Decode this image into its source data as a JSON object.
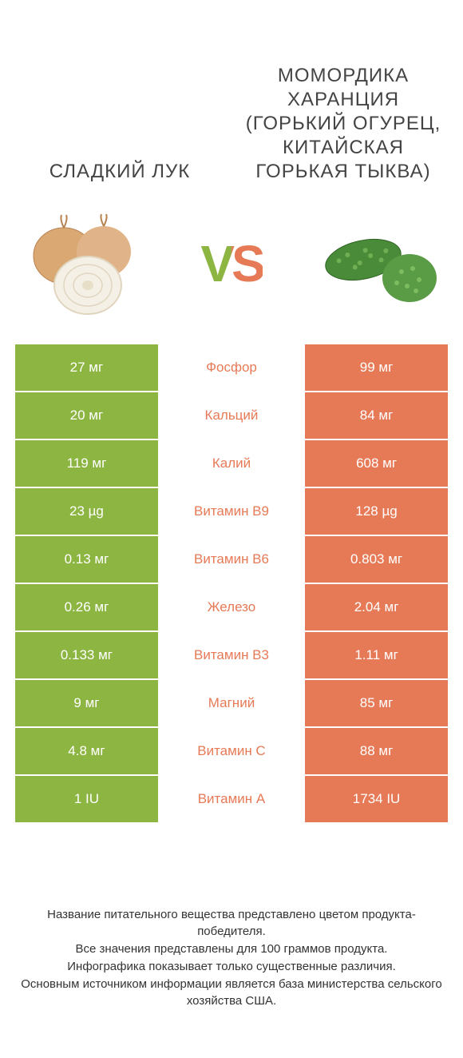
{
  "colors": {
    "left": "#8cb542",
    "right": "#e77a56",
    "mid_bg": "#ffffff"
  },
  "left_title": "СЛАДКИЙ ЛУК",
  "right_title": "МОМОРДИКА ХАРАНЦИЯ (ГОРЬКИЙ ОГУРЕЦ, КИТАЙСКАЯ ГОРЬКАЯ ТЫКВА)",
  "vs_label": "VS",
  "rows": [
    {
      "left": "27 мг",
      "label": "Фосфор",
      "right": "99 мг",
      "winner": "right"
    },
    {
      "left": "20 мг",
      "label": "Кальций",
      "right": "84 мг",
      "winner": "right"
    },
    {
      "left": "119 мг",
      "label": "Калий",
      "right": "608 мг",
      "winner": "right"
    },
    {
      "left": "23 µg",
      "label": "Витамин B9",
      "right": "128 µg",
      "winner": "right"
    },
    {
      "left": "0.13 мг",
      "label": "Витамин B6",
      "right": "0.803 мг",
      "winner": "right"
    },
    {
      "left": "0.26 мг",
      "label": "Железо",
      "right": "2.04 мг",
      "winner": "right"
    },
    {
      "left": "0.133 мг",
      "label": "Витамин B3",
      "right": "1.11 мг",
      "winner": "right"
    },
    {
      "left": "9 мг",
      "label": "Магний",
      "right": "85 мг",
      "winner": "right"
    },
    {
      "left": "4.8 мг",
      "label": "Витамин C",
      "right": "88 мг",
      "winner": "right"
    },
    {
      "left": "1 IU",
      "label": "Витамин A",
      "right": "1734 IU",
      "winner": "right"
    }
  ],
  "footer": {
    "l1": "Название питательного вещества представлено цветом продукта-победителя.",
    "l2": "Все значения представлены для 100 граммов продукта.",
    "l3": "Инфографика показывает только существенные различия.",
    "l4": "Основным источником информации является база министерства сельского хозяйства США."
  }
}
